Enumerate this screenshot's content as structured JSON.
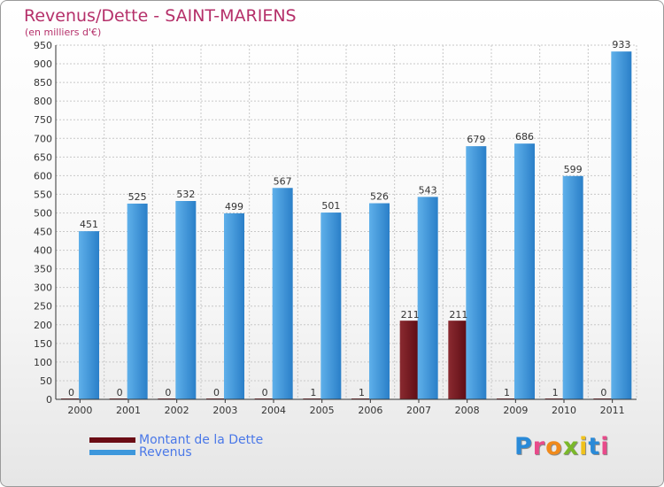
{
  "chart_data": {
    "type": "bar",
    "title": "Revenus/Dette - SAINT-MARIENS",
    "subtitle": "(en milliers d'€)",
    "categories": [
      "2000",
      "2001",
      "2002",
      "2003",
      "2004",
      "2005",
      "2006",
      "2007",
      "2008",
      "2009",
      "2010",
      "2011"
    ],
    "series": [
      {
        "name": "Montant de la Dette",
        "color": "#6b0c14",
        "values": [
          0,
          0,
          0,
          0,
          0,
          1,
          1,
          211,
          211,
          1,
          1,
          0
        ]
      },
      {
        "name": "Revenus",
        "color": "#3d97dc",
        "values": [
          451,
          525,
          532,
          499,
          567,
          501,
          526,
          543,
          679,
          686,
          599,
          933
        ]
      }
    ],
    "ylim": [
      0,
      950
    ],
    "ytick_step": 50,
    "grid": true,
    "legend_position": "bottom-left"
  },
  "logo": {
    "letters": [
      "P",
      "r",
      "o",
      "x",
      "i",
      "t",
      "i"
    ],
    "colors": [
      "#2a8ad8",
      "#e84a8a",
      "#f08a1c",
      "#7ab82a",
      "#f0c21c",
      "#2a8ad8",
      "#e84a8a"
    ]
  }
}
